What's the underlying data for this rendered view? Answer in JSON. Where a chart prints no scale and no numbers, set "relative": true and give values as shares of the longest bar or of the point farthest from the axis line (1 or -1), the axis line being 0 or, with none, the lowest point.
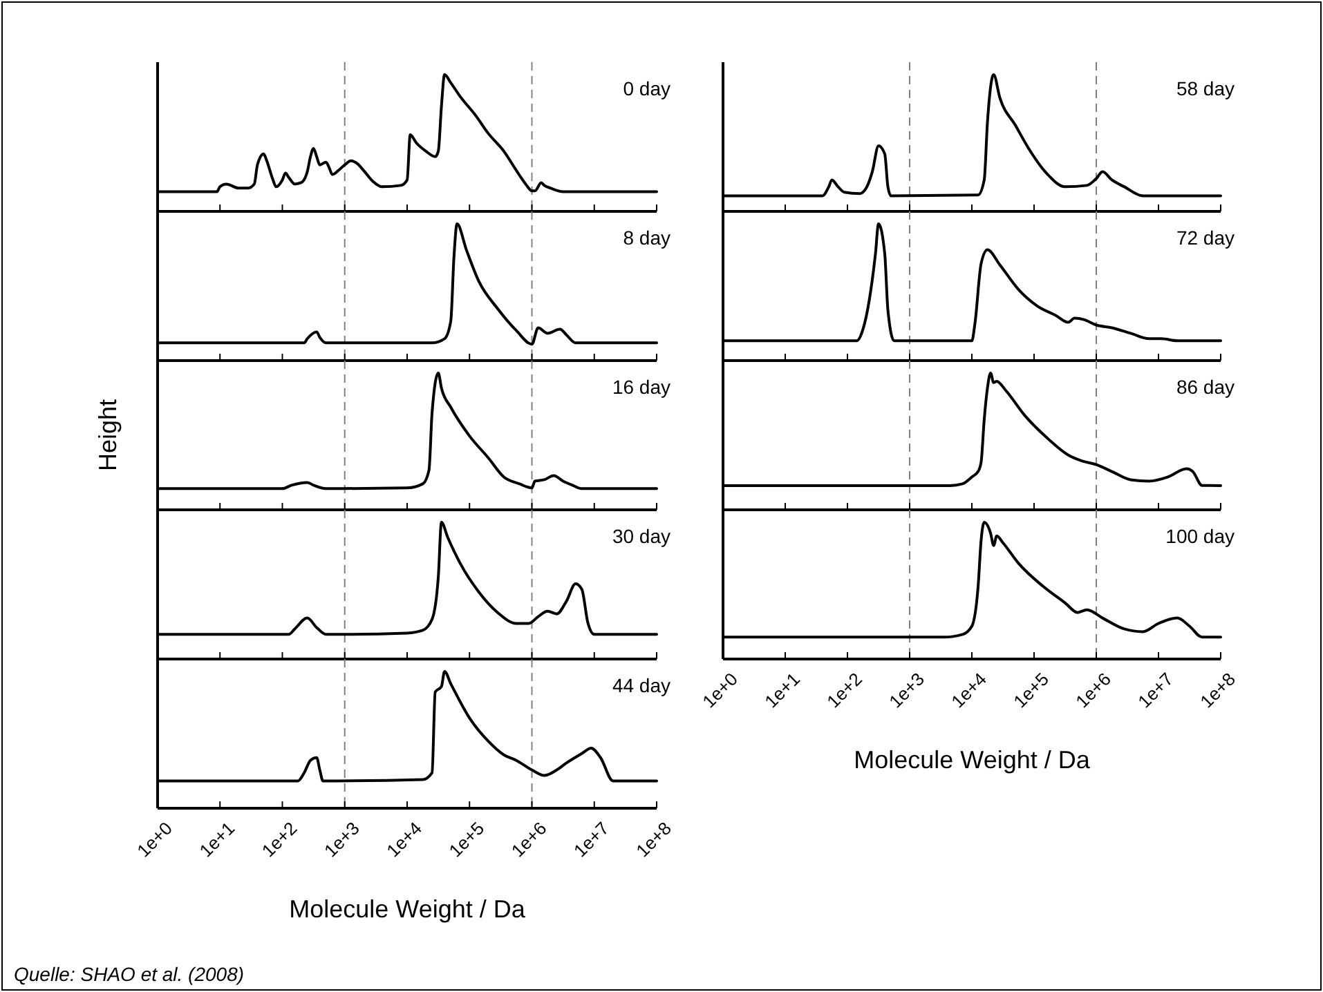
{
  "chart_data": [
    {
      "type": "line",
      "title": "0 day",
      "relative": true,
      "log": "x",
      "xlim": [
        1,
        100000000
      ],
      "xticks": [
        {
          "value": 1,
          "label": null
        },
        {
          "value": 10,
          "label": null
        },
        {
          "value": 100,
          "label": null
        },
        {
          "value": 1000,
          "label": null
        },
        {
          "value": 10000,
          "label": null
        },
        {
          "value": 100000,
          "label": null
        },
        {
          "value": 1000000,
          "label": null
        },
        {
          "value": 10000000,
          "label": null
        },
        {
          "value": 100000000,
          "label": null
        }
      ],
      "tick_labels": false,
      "ref_lines": [
        {
          "axis": "x",
          "value": 1000,
          "color": "#808080",
          "line_style": "dashed"
        },
        {
          "axis": "x",
          "value": 1000000,
          "color": "#808080",
          "line_style": "dashed"
        }
      ],
      "color": "#000000",
      "x": [
        1,
        8.91,
        10,
        12.6,
        20,
        28.2,
        35.5,
        39.8,
        50.1,
        56.2,
        70.8,
        79.4,
        100,
        112,
        126,
        158,
        200,
        251,
        282,
        316,
        355,
        398,
        501,
        562,
        631,
        794,
        1000,
        1260,
        1580,
        2000,
        2820,
        3980,
        7940,
        10000,
        11200,
        14100,
        20000,
        28200,
        31600,
        35500,
        39800,
        50100,
        70800,
        126000,
        200000,
        355000,
        562000,
        794000,
        1000000,
        1120000,
        1410000,
        1580000,
        2000000,
        3160000,
        100000000
      ],
      "values": [
        0.144,
        0.144,
        0.18,
        0.2,
        0.17,
        0.17,
        0.2,
        0.34,
        0.42,
        0.37,
        0.23,
        0.18,
        0.23,
        0.28,
        0.25,
        0.2,
        0.21,
        0.29,
        0.4,
        0.46,
        0.4,
        0.34,
        0.36,
        0.32,
        0.27,
        0.3,
        0.34,
        0.37,
        0.35,
        0.3,
        0.22,
        0.18,
        0.19,
        0.23,
        0.56,
        0.5,
        0.44,
        0.4,
        0.44,
        0.77,
        1,
        0.94,
        0.84,
        0.7,
        0.57,
        0.44,
        0.3,
        0.2,
        0.15,
        0.15,
        0.21,
        0.19,
        0.17,
        0.144,
        0.144
      ]
    },
    {
      "type": "line",
      "title": "8 day",
      "relative": true,
      "log": "x",
      "xlim": [
        1,
        100000000
      ],
      "xticks": [
        {
          "value": 1,
          "label": null
        },
        {
          "value": 10,
          "label": null
        },
        {
          "value": 100,
          "label": null
        },
        {
          "value": 1000,
          "label": null
        },
        {
          "value": 10000,
          "label": null
        },
        {
          "value": 100000,
          "label": null
        },
        {
          "value": 1000000,
          "label": null
        },
        {
          "value": 10000000,
          "label": null
        },
        {
          "value": 100000000,
          "label": null
        }
      ],
      "tick_labels": false,
      "ref_lines": [
        {
          "axis": "x",
          "value": 1000,
          "color": "#808080",
          "line_style": "dashed"
        },
        {
          "axis": "x",
          "value": 1000000,
          "color": "#808080",
          "line_style": "dashed"
        }
      ],
      "color": "#000000",
      "x": [
        1,
        224,
        251,
        355,
        398,
        501,
        25100,
        39800,
        50100,
        56200,
        63100,
        89100,
        141000,
        282000,
        562000,
        1000000,
        1260000,
        1780000,
        2820000,
        3550000,
        5010000,
        100000000
      ],
      "values": [
        0.13,
        0.13,
        0.16,
        0.21,
        0.17,
        0.13,
        0.13,
        0.16,
        0.29,
        0.75,
        1,
        0.81,
        0.58,
        0.38,
        0.22,
        0.12,
        0.24,
        0.2,
        0.23,
        0.19,
        0.13,
        0.13
      ]
    },
    {
      "type": "line",
      "title": "16 day",
      "ylabel": "Height",
      "relative": true,
      "log": "x",
      "xlim": [
        1,
        100000000
      ],
      "xticks": [
        {
          "value": 1,
          "label": null
        },
        {
          "value": 10,
          "label": null
        },
        {
          "value": 100,
          "label": null
        },
        {
          "value": 1000,
          "label": null
        },
        {
          "value": 10000,
          "label": null
        },
        {
          "value": 100000,
          "label": null
        },
        {
          "value": 1000000,
          "label": null
        },
        {
          "value": 10000000,
          "label": null
        },
        {
          "value": 100000000,
          "label": null
        }
      ],
      "tick_labels": false,
      "ref_lines": [
        {
          "axis": "x",
          "value": 1000,
          "color": "#808080",
          "line_style": "dashed"
        },
        {
          "axis": "x",
          "value": 1000000,
          "color": "#808080",
          "line_style": "dashed"
        }
      ],
      "color": "#000000",
      "x": [
        1,
        100,
        141,
        251,
        316,
        501,
        10000,
        17800,
        22400,
        25100,
        31600,
        35500,
        50100,
        100000,
        200000,
        355000,
        631000,
        1000000,
        1120000,
        1580000,
        2240000,
        3160000,
        4470000,
        6310000,
        100000000
      ],
      "values": [
        0.155,
        0.155,
        0.18,
        0.2,
        0.18,
        0.155,
        0.16,
        0.19,
        0.29,
        0.71,
        1,
        0.89,
        0.75,
        0.54,
        0.38,
        0.24,
        0.19,
        0.16,
        0.21,
        0.22,
        0.25,
        0.21,
        0.18,
        0.155,
        0.155
      ]
    },
    {
      "type": "line",
      "title": "30 day",
      "relative": true,
      "log": "x",
      "xlim": [
        1,
        100000000
      ],
      "xticks": [
        {
          "value": 1,
          "label": null
        },
        {
          "value": 10,
          "label": null
        },
        {
          "value": 100,
          "label": null
        },
        {
          "value": 1000,
          "label": null
        },
        {
          "value": 10000,
          "label": null
        },
        {
          "value": 100000,
          "label": null
        },
        {
          "value": 1000000,
          "label": null
        },
        {
          "value": 10000000,
          "label": null
        },
        {
          "value": 100000000,
          "label": null
        }
      ],
      "tick_labels": false,
      "ref_lines": [
        {
          "axis": "x",
          "value": 1000,
          "color": "#808080",
          "line_style": "dashed"
        },
        {
          "axis": "x",
          "value": 1000000,
          "color": "#808080",
          "line_style": "dashed"
        }
      ],
      "color": "#000000",
      "x": [
        1,
        126,
        158,
        251,
        355,
        501,
        10000,
        17800,
        25100,
        31600,
        35500,
        44700,
        70800,
        141000,
        282000,
        562000,
        891000,
        1260000,
        1780000,
        2510000,
        3550000,
        5010000,
        6310000,
        7940000,
        10000000,
        100000000
      ],
      "values": [
        0.18,
        0.18,
        0.22,
        0.3,
        0.23,
        0.18,
        0.19,
        0.21,
        0.29,
        0.6,
        1,
        0.89,
        0.7,
        0.49,
        0.34,
        0.26,
        0.26,
        0.31,
        0.35,
        0.33,
        0.42,
        0.55,
        0.51,
        0.26,
        0.18,
        0.18
      ]
    },
    {
      "type": "line",
      "title": "44 day",
      "xlabel": "Molecule Weight / Da",
      "annotations": [
        "Quelle: SHAO et al. (2008)"
      ],
      "relative": true,
      "log": "x",
      "xlim": [
        1,
        100000000
      ],
      "xticks": [
        {
          "value": 1,
          "label": "1e+0"
        },
        {
          "value": 10,
          "label": "1e+1"
        },
        {
          "value": 100,
          "label": "1e+2"
        },
        {
          "value": 1000,
          "label": "1e+3"
        },
        {
          "value": 10000,
          "label": "1e+4"
        },
        {
          "value": 100000,
          "label": "1e+5"
        },
        {
          "value": 1000000,
          "label": "1e+6"
        },
        {
          "value": 10000000,
          "label": "1e+7"
        },
        {
          "value": 100000000,
          "label": "1e+8"
        }
      ],
      "tick_labels": "x",
      "ref_lines": [
        {
          "axis": "x",
          "value": 1000,
          "color": "#808080",
          "line_style": "dashed"
        },
        {
          "axis": "x",
          "value": 1000000,
          "color": "#808080",
          "line_style": "dashed"
        }
      ],
      "color": "#000000",
      "x": [
        1,
        178,
        224,
        282,
        355,
        398,
        447,
        17800,
        25100,
        28200,
        35500,
        39800,
        50100,
        100000,
        200000,
        355000,
        562000,
        1000000,
        1580000,
        2510000,
        3550000,
        6310000,
        8910000,
        12600000,
        20000000,
        100000000
      ],
      "values": [
        0.2,
        0.2,
        0.26,
        0.35,
        0.37,
        0.28,
        0.2,
        0.21,
        0.26,
        0.85,
        0.89,
        1,
        0.91,
        0.66,
        0.49,
        0.39,
        0.35,
        0.28,
        0.24,
        0.28,
        0.33,
        0.4,
        0.44,
        0.37,
        0.2,
        0.2
      ]
    },
    {
      "type": "line",
      "title": "58 day",
      "relative": true,
      "log": "x",
      "xlim": [
        1,
        100000000
      ],
      "xticks": [
        {
          "value": 1,
          "label": null
        },
        {
          "value": 10,
          "label": null
        },
        {
          "value": 100,
          "label": null
        },
        {
          "value": 1000,
          "label": null
        },
        {
          "value": 10000,
          "label": null
        },
        {
          "value": 100000,
          "label": null
        },
        {
          "value": 1000000,
          "label": null
        },
        {
          "value": 10000000,
          "label": null
        },
        {
          "value": 100000000,
          "label": null
        }
      ],
      "tick_labels": false,
      "ref_lines": [
        {
          "axis": "x",
          "value": 1000,
          "color": "#808080",
          "line_style": "dashed"
        },
        {
          "axis": "x",
          "value": 1000000,
          "color": "#808080",
          "line_style": "dashed"
        }
      ],
      "color": "#000000",
      "x": [
        1,
        39.8,
        50.1,
        56.2,
        70.8,
        89.1,
        158,
        200,
        251,
        316,
        398,
        447,
        501,
        12600,
        15800,
        17800,
        22400,
        28200,
        50100,
        79400,
        158000,
        316000,
        708000,
        1000000,
        1260000,
        1780000,
        2820000,
        5620000,
        100000000
      ],
      "values": [
        0.114,
        0.114,
        0.18,
        0.23,
        0.18,
        0.14,
        0.13,
        0.17,
        0.29,
        0.48,
        0.42,
        0.18,
        0.114,
        0.12,
        0.23,
        0.65,
        1,
        0.83,
        0.63,
        0.47,
        0.28,
        0.18,
        0.19,
        0.24,
        0.29,
        0.23,
        0.18,
        0.114,
        0.114
      ]
    },
    {
      "type": "line",
      "title": "72 day",
      "relative": true,
      "log": "x",
      "xlim": [
        1,
        100000000
      ],
      "xticks": [
        {
          "value": 1,
          "label": null
        },
        {
          "value": 10,
          "label": null
        },
        {
          "value": 100,
          "label": null
        },
        {
          "value": 1000,
          "label": null
        },
        {
          "value": 10000,
          "label": null
        },
        {
          "value": 100000,
          "label": null
        },
        {
          "value": 1000000,
          "label": null
        },
        {
          "value": 10000000,
          "label": null
        },
        {
          "value": 100000000,
          "label": null
        }
      ],
      "tick_labels": false,
      "ref_lines": [
        {
          "axis": "x",
          "value": 1000,
          "color": "#808080",
          "line_style": "dashed"
        },
        {
          "axis": "x",
          "value": 1000000,
          "color": "#808080",
          "line_style": "dashed"
        }
      ],
      "color": "#000000",
      "x": [
        1,
        141,
        178,
        224,
        282,
        316,
        398,
        447,
        562,
        10000,
        11200,
        14100,
        17800,
        28200,
        56200,
        112000,
        224000,
        355000,
        447000,
        631000,
        1000000,
        1780000,
        3550000,
        7080000,
        11200000,
        20000000,
        100000000
      ],
      "values": [
        0.145,
        0.145,
        0.23,
        0.44,
        0.78,
        1,
        0.78,
        0.37,
        0.145,
        0.145,
        0.27,
        0.71,
        0.81,
        0.7,
        0.52,
        0.4,
        0.33,
        0.28,
        0.31,
        0.3,
        0.26,
        0.24,
        0.2,
        0.16,
        0.16,
        0.145,
        0.145
      ]
    },
    {
      "type": "line",
      "title": "86 day",
      "relative": true,
      "log": "x",
      "xlim": [
        1,
        100000000
      ],
      "xticks": [
        {
          "value": 1,
          "label": null
        },
        {
          "value": 10,
          "label": null
        },
        {
          "value": 100,
          "label": null
        },
        {
          "value": 1000,
          "label": null
        },
        {
          "value": 10000,
          "label": null
        },
        {
          "value": 100000,
          "label": null
        },
        {
          "value": 1000000,
          "label": null
        },
        {
          "value": 10000000,
          "label": null
        },
        {
          "value": 100000000,
          "label": null
        }
      ],
      "tick_labels": false,
      "ref_lines": [
        {
          "axis": "x",
          "value": 1000,
          "color": "#808080",
          "line_style": "dashed"
        },
        {
          "axis": "x",
          "value": 1000000,
          "color": "#808080",
          "line_style": "dashed"
        }
      ],
      "color": "#000000",
      "x": [
        1,
        4470,
        7080,
        10000,
        12600,
        14100,
        15800,
        17800,
        20000,
        22400,
        25100,
        35500,
        70800,
        158000,
        355000,
        562000,
        1000000,
        1780000,
        3550000,
        7080000,
        14100000,
        28200000,
        35500000,
        50100000,
        100000000
      ],
      "values": [
        0.177,
        0.177,
        0.19,
        0.24,
        0.28,
        0.35,
        0.66,
        0.89,
        1,
        0.93,
        0.94,
        0.87,
        0.69,
        0.53,
        0.4,
        0.36,
        0.33,
        0.28,
        0.22,
        0.21,
        0.24,
        0.3,
        0.28,
        0.178,
        0.177
      ]
    },
    {
      "type": "line",
      "title": "100 day",
      "xlabel": "Molecule Weight / Da",
      "relative": true,
      "log": "x",
      "xlim": [
        1,
        100000000
      ],
      "xticks": [
        {
          "value": 1,
          "label": "1e+0"
        },
        {
          "value": 10,
          "label": "1e+1"
        },
        {
          "value": 100,
          "label": "1e+2"
        },
        {
          "value": 1000,
          "label": "1e+3"
        },
        {
          "value": 10000,
          "label": "1e+4"
        },
        {
          "value": 100000,
          "label": "1e+5"
        },
        {
          "value": 1000000,
          "label": "1e+6"
        },
        {
          "value": 10000000,
          "label": "1e+7"
        },
        {
          "value": 100000000,
          "label": "1e+8"
        }
      ],
      "tick_labels": "x",
      "ref_lines": [
        {
          "axis": "x",
          "value": 1000,
          "color": "#808080",
          "line_style": "dashed"
        },
        {
          "axis": "x",
          "value": 1000000,
          "color": "#808080",
          "line_style": "dashed"
        }
      ],
      "color": "#000000",
      "x": [
        1,
        3550,
        7080,
        10000,
        12600,
        14100,
        15800,
        20000,
        22400,
        25100,
        31600,
        56200,
        141000,
        316000,
        501000,
        708000,
        1260000,
        2820000,
        5620000,
        10000000,
        20000000,
        31600000,
        50100000,
        100000000
      ],
      "values": [
        0.16,
        0.16,
        0.18,
        0.24,
        0.53,
        0.87,
        1,
        0.92,
        0.83,
        0.9,
        0.85,
        0.7,
        0.53,
        0.41,
        0.34,
        0.36,
        0.3,
        0.22,
        0.2,
        0.26,
        0.3,
        0.24,
        0.16,
        0.16
      ]
    }
  ]
}
